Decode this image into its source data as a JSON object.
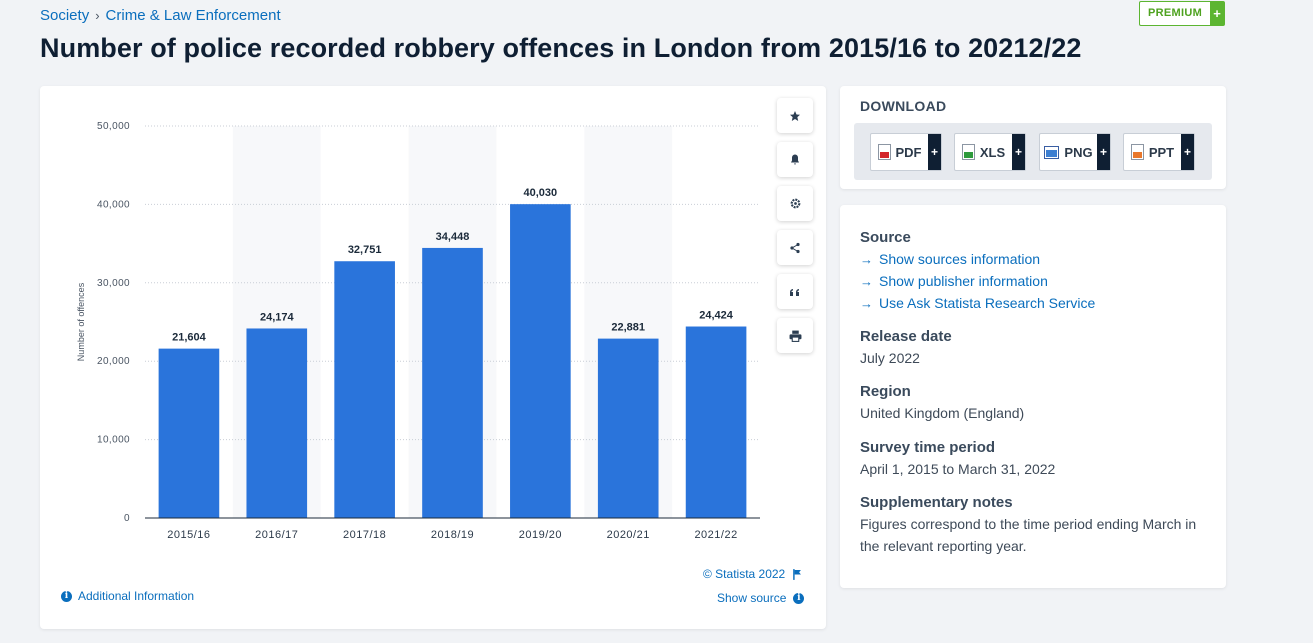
{
  "breadcrumb": {
    "category": "Society",
    "separator": "›",
    "subcategory": "Crime & Law Enforcement"
  },
  "premium": {
    "label": "PREMIUM",
    "plus": "+"
  },
  "title": "Number of police recorded robbery offences in London from 2015/16 to 20212/22",
  "toolbar": {
    "icons": [
      "star-icon",
      "bell-icon",
      "gear-icon",
      "share-icon",
      "quote-icon",
      "print-icon"
    ]
  },
  "chart_footer": {
    "copyright": "© Statista 2022",
    "additional_info": "Additional Information",
    "show_source": "Show source"
  },
  "download": {
    "title": "DOWNLOAD",
    "formats": [
      {
        "label": "PDF",
        "plus": "+"
      },
      {
        "label": "XLS",
        "plus": "+"
      },
      {
        "label": "PNG",
        "plus": "+"
      },
      {
        "label": "PPT",
        "plus": "+"
      }
    ]
  },
  "info": {
    "source_heading": "Source",
    "links": [
      "Show sources information",
      "Show publisher information",
      "Use Ask Statista Research Service"
    ],
    "release_heading": "Release date",
    "release_value": "July 2022",
    "region_heading": "Region",
    "region_value": "United Kingdom (England)",
    "survey_heading": "Survey time period",
    "survey_value": "April 1, 2015 to March 31, 2022",
    "notes_heading": "Supplementary notes",
    "notes_value": "Figures correspond to the time period ending March in the relevant reporting year."
  },
  "colors": {
    "bar": "#2a74db",
    "accent": "#0a6ebd",
    "premium": "#5cb531"
  },
  "chart_data": {
    "type": "bar",
    "title": "",
    "xlabel": "",
    "ylabel": "Number of offences",
    "categories": [
      "2015/16",
      "2016/17",
      "2017/18",
      "2018/19",
      "2019/20",
      "2020/21",
      "2021/22"
    ],
    "values": [
      21604,
      24174,
      32751,
      34448,
      40030,
      22881,
      24424
    ],
    "value_labels": [
      "21,604",
      "24,174",
      "32,751",
      "34,448",
      "40,030",
      "22,881",
      "24,424"
    ],
    "yticks": [
      0,
      10000,
      20000,
      30000,
      40000,
      50000
    ],
    "ytick_labels": [
      "0",
      "10,000",
      "20,000",
      "30,000",
      "40,000",
      "50,000"
    ],
    "ylim": [
      0,
      50000
    ],
    "grid": true,
    "legend": "none"
  }
}
